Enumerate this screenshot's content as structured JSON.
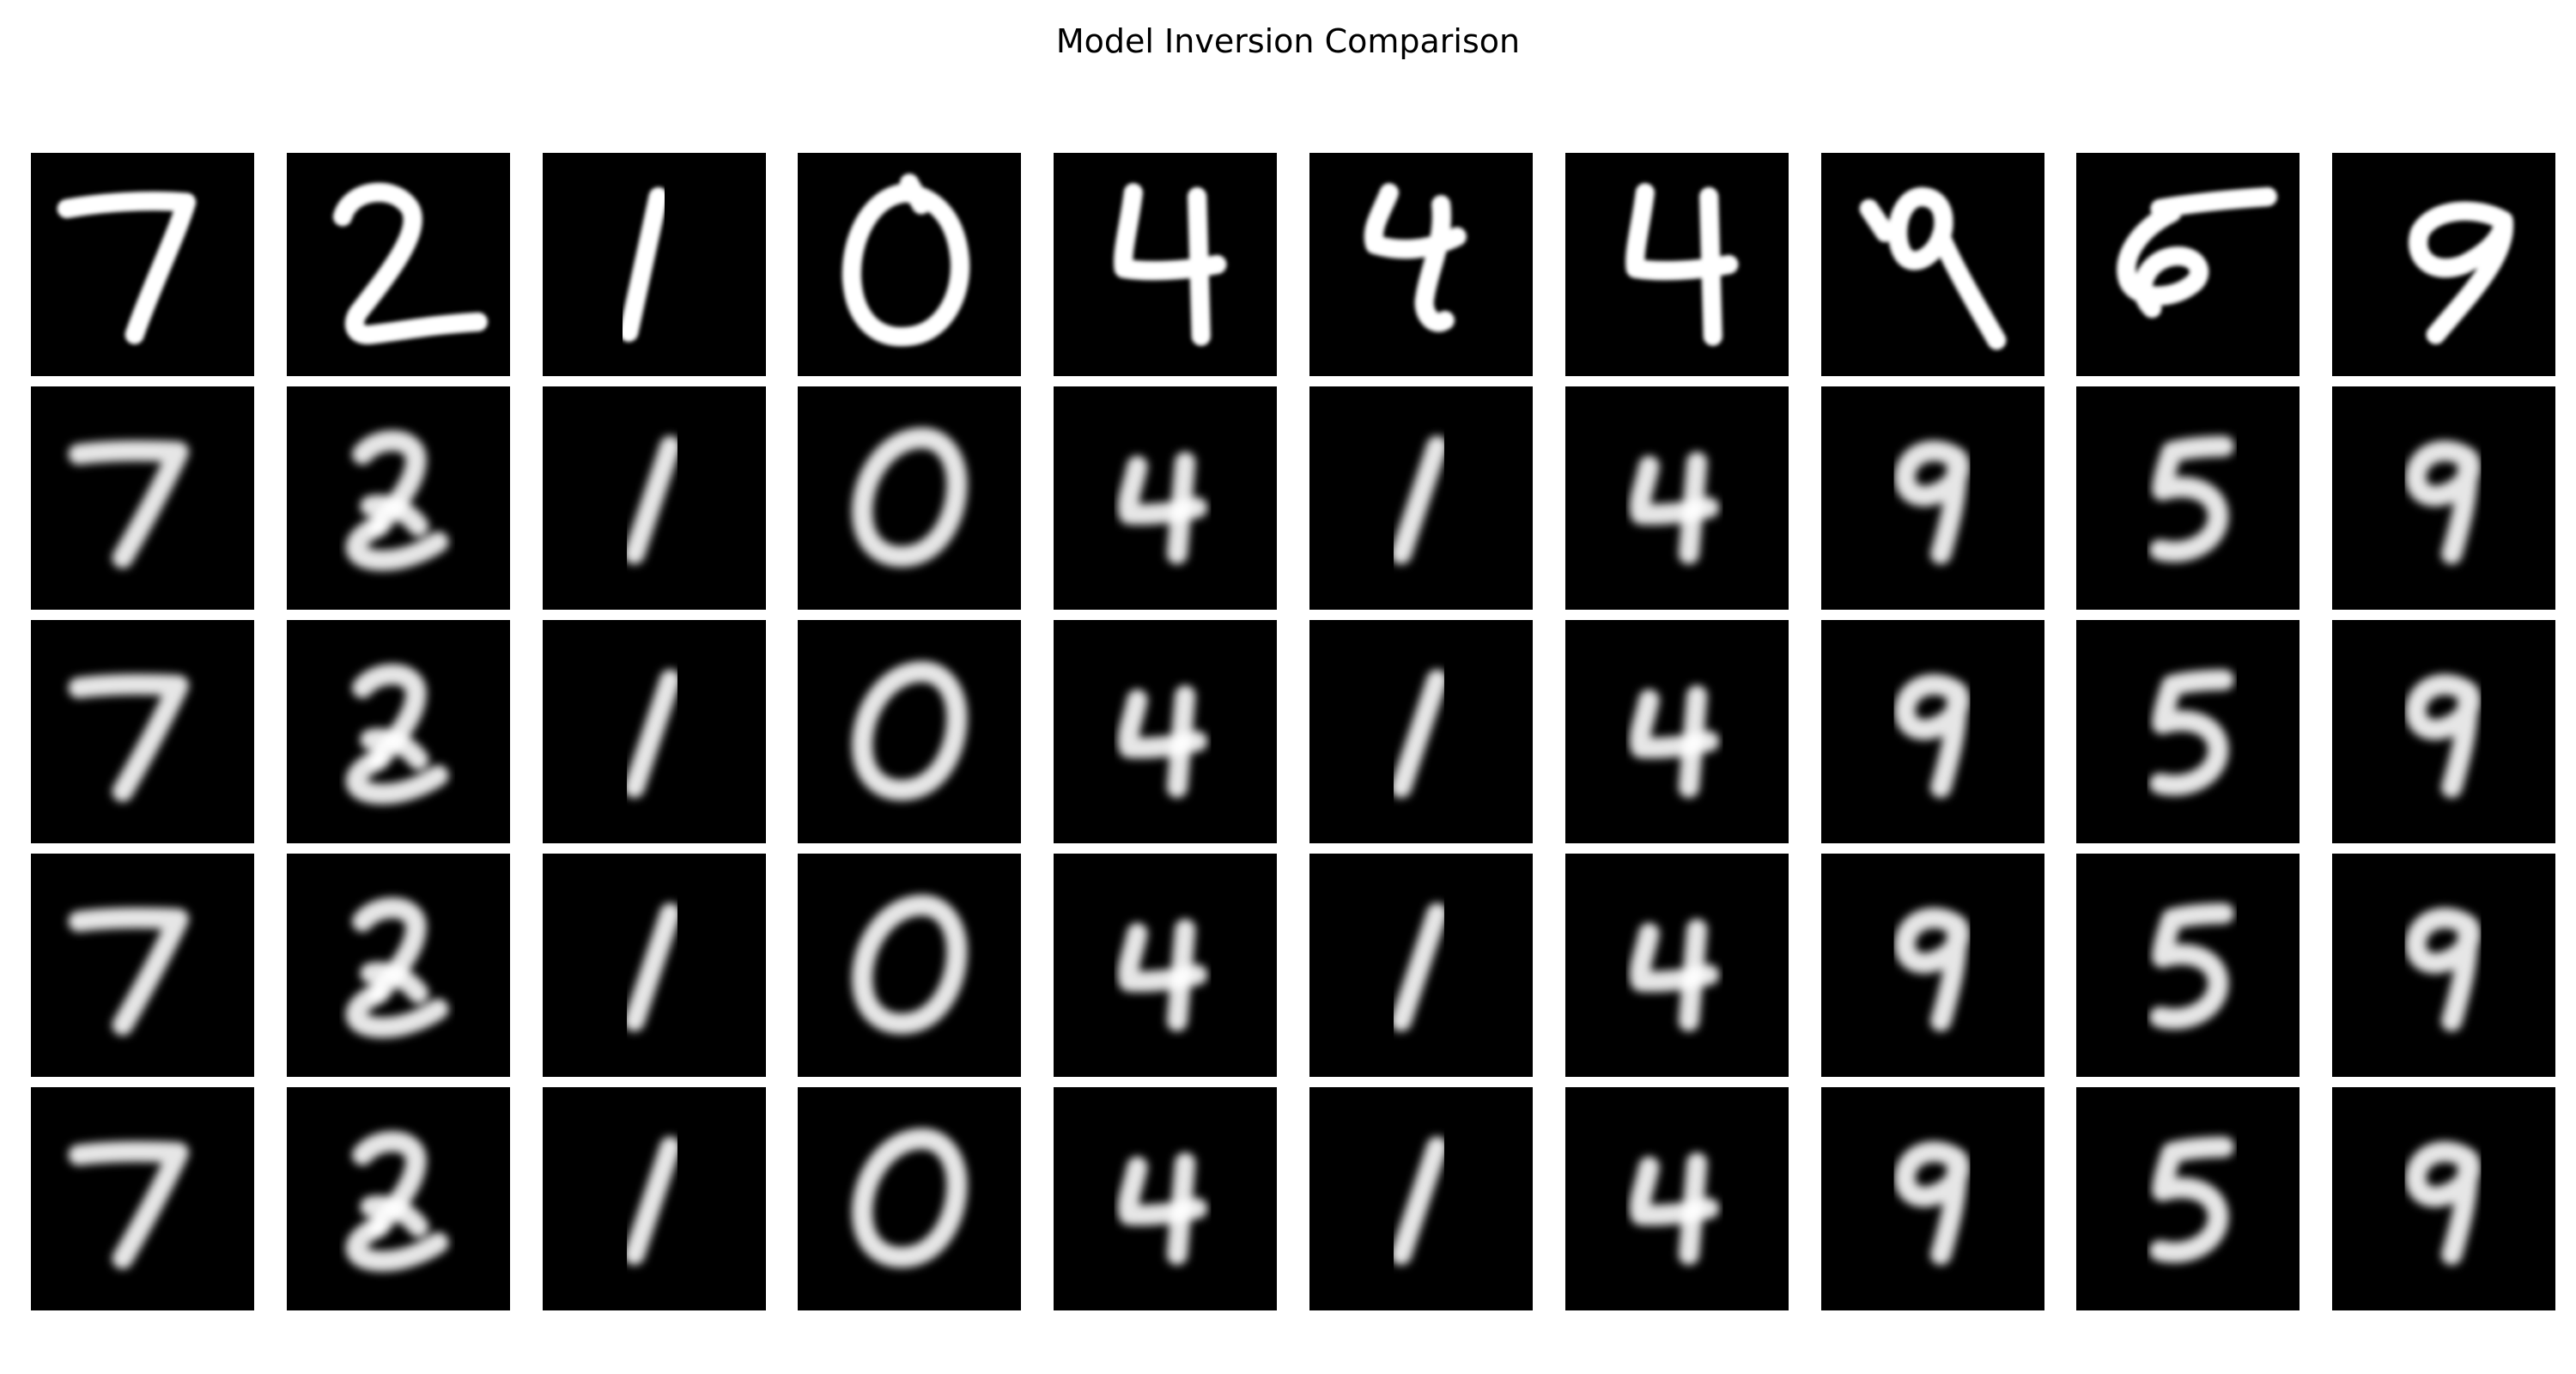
{
  "figure": {
    "title": "Model Inversion Comparison",
    "background_color": "#ffffff",
    "tile_background": "#000000",
    "stroke_color": "#ffffff",
    "digits": [
      "7",
      "2",
      "1",
      "0",
      "4",
      "1",
      "4",
      "9",
      "5",
      "9"
    ],
    "rows": [
      {
        "kind": "original"
      },
      {
        "kind": "reconstruction"
      },
      {
        "kind": "reconstruction"
      },
      {
        "kind": "reconstruction"
      },
      {
        "kind": "reconstruction"
      }
    ]
  }
}
